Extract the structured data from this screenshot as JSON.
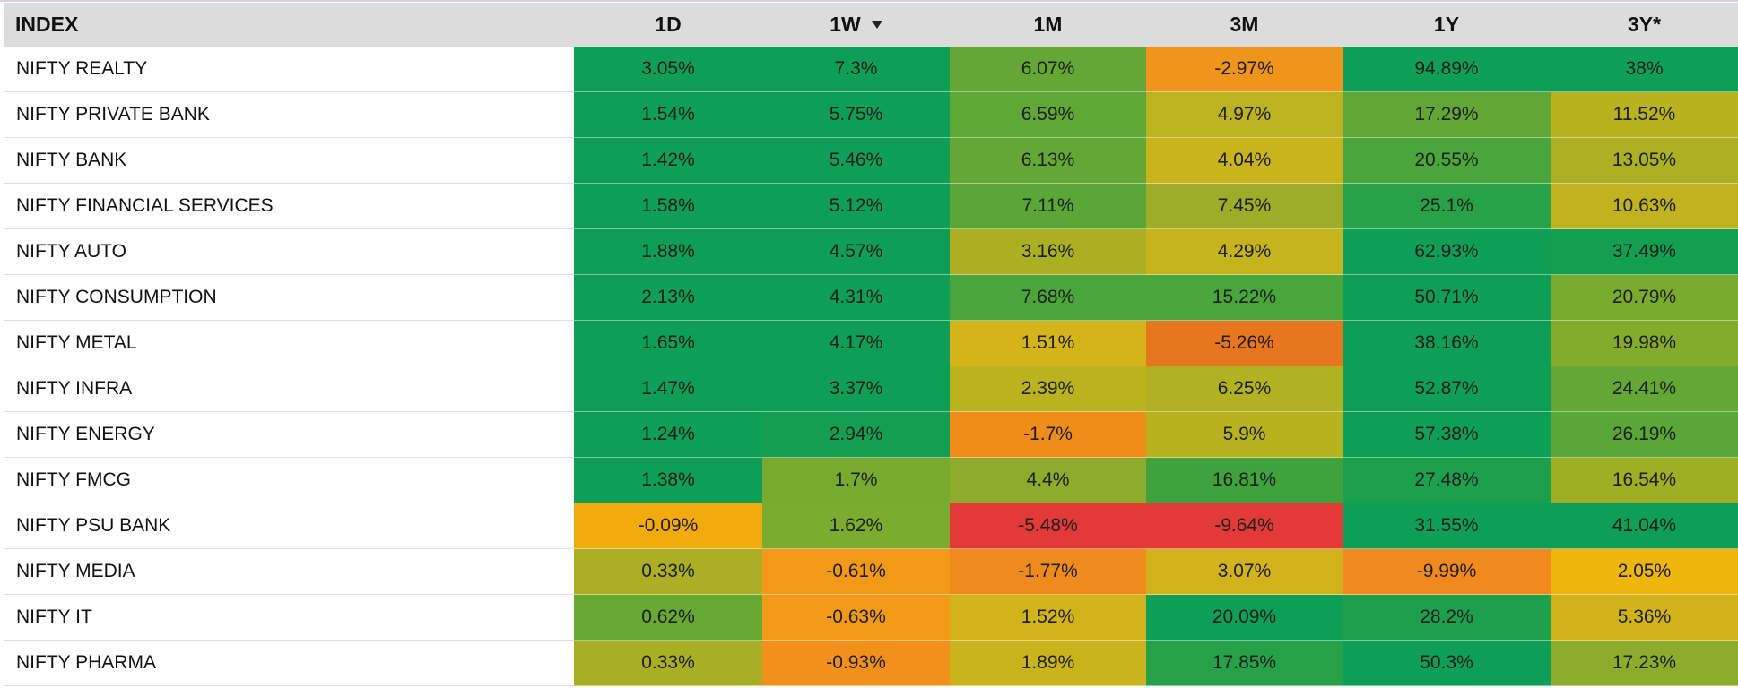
{
  "table": {
    "headers": {
      "index": "INDEX",
      "d1": "1D",
      "w1": "1W",
      "m1": "1M",
      "m3": "3M",
      "y1": "1Y",
      "y3": "3Y*"
    },
    "sort_icon": "sort-desc-icon",
    "rows": [
      {
        "name": "NIFTY REALTY",
        "d1": "3.05%",
        "w1": "7.3%",
        "m1": "6.07%",
        "m3": "-2.97%",
        "y1": "94.89%",
        "y3": "38%",
        "colors": {
          "d1": "#0e9e55",
          "w1": "#0e9e55",
          "m1": "#64a734",
          "m3": "#f0941b",
          "y1": "#0e9e55",
          "y3": "#0e9e55"
        }
      },
      {
        "name": "NIFTY PRIVATE BANK",
        "d1": "1.54%",
        "w1": "5.75%",
        "m1": "6.59%",
        "m3": "4.97%",
        "y1": "17.29%",
        "y3": "11.52%",
        "colors": {
          "d1": "#0e9e55",
          "w1": "#0e9e55",
          "m1": "#5fa835",
          "m3": "#bbb320",
          "y1": "#61a735",
          "y3": "#b7b21f"
        }
      },
      {
        "name": "NIFTY BANK",
        "d1": "1.42%",
        "w1": "5.46%",
        "m1": "6.13%",
        "m3": "4.04%",
        "y1": "20.55%",
        "y3": "13.05%",
        "colors": {
          "d1": "#0e9e55",
          "w1": "#0e9e55",
          "m1": "#63a734",
          "m3": "#c9b41d",
          "y1": "#4aa63b",
          "y3": "#adb023"
        }
      },
      {
        "name": "NIFTY FINANCIAL SERVICES",
        "d1": "1.58%",
        "w1": "5.12%",
        "m1": "7.11%",
        "m3": "7.45%",
        "y1": "25.1%",
        "y3": "10.63%",
        "colors": {
          "d1": "#0e9e55",
          "w1": "#0e9e55",
          "m1": "#58a737",
          "m3": "#9dad27",
          "y1": "#29a147",
          "y3": "#c0b31f"
        }
      },
      {
        "name": "NIFTY AUTO",
        "d1": "1.88%",
        "w1": "4.57%",
        "m1": "3.16%",
        "m3": "4.29%",
        "y1": "62.93%",
        "y3": "37.49%",
        "colors": {
          "d1": "#0e9e55",
          "w1": "#0e9e55",
          "m1": "#abb022",
          "m3": "#c5b41e",
          "y1": "#0e9e55",
          "y3": "#12a050"
        }
      },
      {
        "name": "NIFTY CONSUMPTION",
        "d1": "2.13%",
        "w1": "4.31%",
        "m1": "7.68%",
        "m3": "15.22%",
        "y1": "50.71%",
        "y3": "20.79%",
        "colors": {
          "d1": "#0e9e55",
          "w1": "#0e9e55",
          "m1": "#4aa63a",
          "m3": "#49a63b",
          "y1": "#0e9e55",
          "y3": "#7aab2f"
        }
      },
      {
        "name": "NIFTY METAL",
        "d1": "1.65%",
        "w1": "4.17%",
        "m1": "1.51%",
        "m3": "-5.26%",
        "y1": "38.16%",
        "y3": "19.98%",
        "colors": {
          "d1": "#0e9e55",
          "w1": "#0e9e55",
          "m1": "#d4b419",
          "m3": "#e8761f",
          "y1": "#0e9e55",
          "y3": "#84ac2c"
        }
      },
      {
        "name": "NIFTY INFRA",
        "d1": "1.47%",
        "w1": "3.37%",
        "m1": "2.39%",
        "m3": "6.25%",
        "y1": "52.87%",
        "y3": "24.41%",
        "colors": {
          "d1": "#0e9e55",
          "w1": "#0e9e55",
          "m1": "#bab31f",
          "m3": "#b2b122",
          "y1": "#0e9e55",
          "y3": "#63a734"
        }
      },
      {
        "name": "NIFTY ENERGY",
        "d1": "1.24%",
        "w1": "2.94%",
        "m1": "-1.7%",
        "m3": "5.9%",
        "y1": "57.38%",
        "y3": "26.19%",
        "colors": {
          "d1": "#0e9e55",
          "w1": "#149e51",
          "m1": "#f08d1a",
          "m3": "#b6b220",
          "y1": "#0e9e55",
          "y3": "#58a737"
        }
      },
      {
        "name": "NIFTY FMCG",
        "d1": "1.38%",
        "w1": "1.7%",
        "m1": "4.4%",
        "m3": "16.81%",
        "y1": "27.48%",
        "y3": "16.54%",
        "colors": {
          "d1": "#0e9e55",
          "w1": "#78aa30",
          "m1": "#8eac2b",
          "m3": "#3fa33d",
          "y1": "#1ca04c",
          "y3": "#a0ae25"
        }
      },
      {
        "name": "NIFTY PSU BANK",
        "d1": "-0.09%",
        "w1": "1.62%",
        "m1": "-5.48%",
        "m3": "-9.64%",
        "y1": "31.55%",
        "y3": "41.04%",
        "colors": {
          "d1": "#f3aa0c",
          "w1": "#7bab2f",
          "m1": "#e23b37",
          "m3": "#e23b37",
          "y1": "#0e9e55",
          "y3": "#0e9e55"
        }
      },
      {
        "name": "NIFTY MEDIA",
        "d1": "0.33%",
        "w1": "-0.61%",
        "m1": "-1.77%",
        "m3": "3.07%",
        "y1": "-9.99%",
        "y3": "2.05%",
        "colors": {
          "d1": "#acaf23",
          "w1": "#f29a17",
          "m1": "#ef8a1c",
          "m3": "#d2b31b",
          "y1": "#f08a1d",
          "y3": "#eeb60d"
        }
      },
      {
        "name": "NIFTY IT",
        "d1": "0.62%",
        "w1": "-0.63%",
        "m1": "1.52%",
        "m3": "20.09%",
        "y1": "28.2%",
        "y3": "5.36%",
        "colors": {
          "d1": "#68a834",
          "w1": "#f29918",
          "m1": "#d1b31a",
          "m3": "#0e9e55",
          "y1": "#1ca04c",
          "y3": "#d0b31b"
        }
      },
      {
        "name": "NIFTY PHARMA",
        "d1": "0.33%",
        "w1": "-0.93%",
        "m1": "1.89%",
        "m3": "17.85%",
        "y1": "50.3%",
        "y3": "17.23%",
        "colors": {
          "d1": "#a9af23",
          "w1": "#f1911b",
          "m1": "#c9b41d",
          "m3": "#27a147",
          "y1": "#0e9e55",
          "y3": "#8eac2b"
        }
      }
    ]
  }
}
